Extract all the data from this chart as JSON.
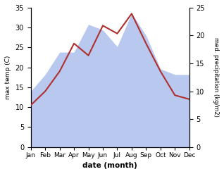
{
  "months": [
    "Jan",
    "Feb",
    "Mar",
    "Apr",
    "May",
    "Jun",
    "Jul",
    "Aug",
    "Sep",
    "Oct",
    "Nov",
    "Dec"
  ],
  "temperature": [
    10.5,
    14.0,
    19.0,
    26.0,
    23.0,
    30.5,
    28.5,
    33.5,
    26.0,
    19.0,
    13.0,
    12.0
  ],
  "precipitation": [
    10.0,
    13.0,
    17.0,
    17.0,
    22.0,
    21.0,
    18.0,
    24.0,
    20.0,
    14.0,
    13.0,
    13.0
  ],
  "temp_ylim": [
    0,
    35
  ],
  "precip_ylim": [
    0,
    25
  ],
  "temp_color": "#b03030",
  "precip_color": "#b8c8ee",
  "xlabel": "date (month)",
  "ylabel_left": "max temp (C)",
  "ylabel_right": "med. precipitation (kg/m2)",
  "temp_yticks": [
    0,
    5,
    10,
    15,
    20,
    25,
    30,
    35
  ],
  "precip_yticks": [
    0,
    5,
    10,
    15,
    20,
    25
  ],
  "bg_color": "#ffffff"
}
